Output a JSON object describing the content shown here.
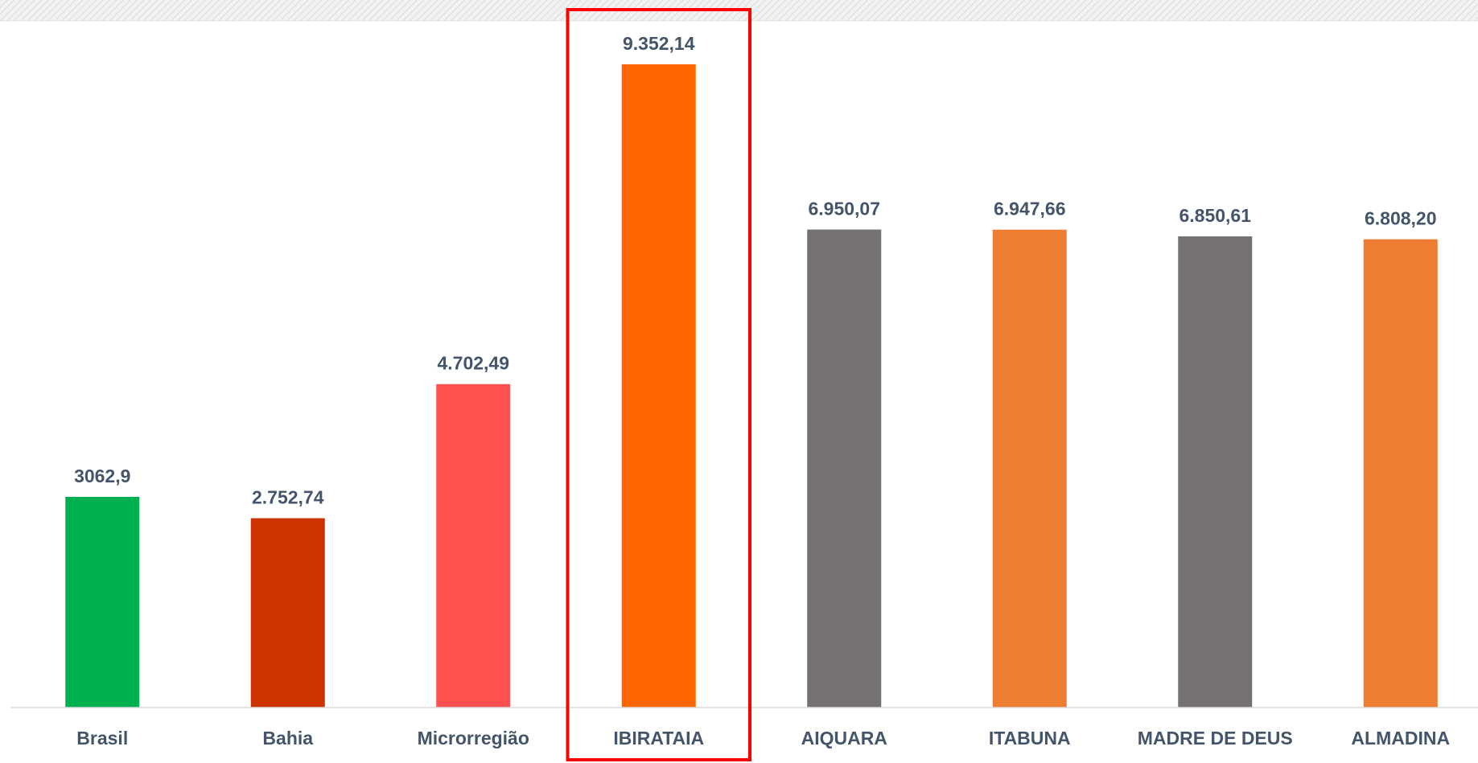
{
  "chart_data": {
    "type": "bar",
    "title": "",
    "xlabel": "",
    "ylabel": "",
    "ylim": [
      0,
      10000
    ],
    "grid": false,
    "legend": "none",
    "categories": [
      "Brasil",
      "Bahia",
      "Microrregião",
      "IBIRATAIA",
      "AIQUARA",
      "ITABUNA",
      "MADRE DE DEUS",
      "ALMADINA"
    ],
    "values": [
      3062.9,
      2752.74,
      4702.49,
      9352.14,
      6950.07,
      6947.66,
      6850.61,
      6808.2
    ],
    "value_labels": [
      "3062,9",
      "2.752,74",
      "4.702,49",
      "9.352,14",
      "6.950,07",
      "6.947,66",
      "6.850,61",
      "6.808,20"
    ],
    "colors": [
      "#00b050",
      "#cc3300",
      "#ff5050",
      "#ff6600",
      "#767171",
      "#ed7d31",
      "#767171",
      "#ed7d31"
    ],
    "highlighted_category": "IBIRATAIA",
    "highlight_color": "#ff0000"
  }
}
